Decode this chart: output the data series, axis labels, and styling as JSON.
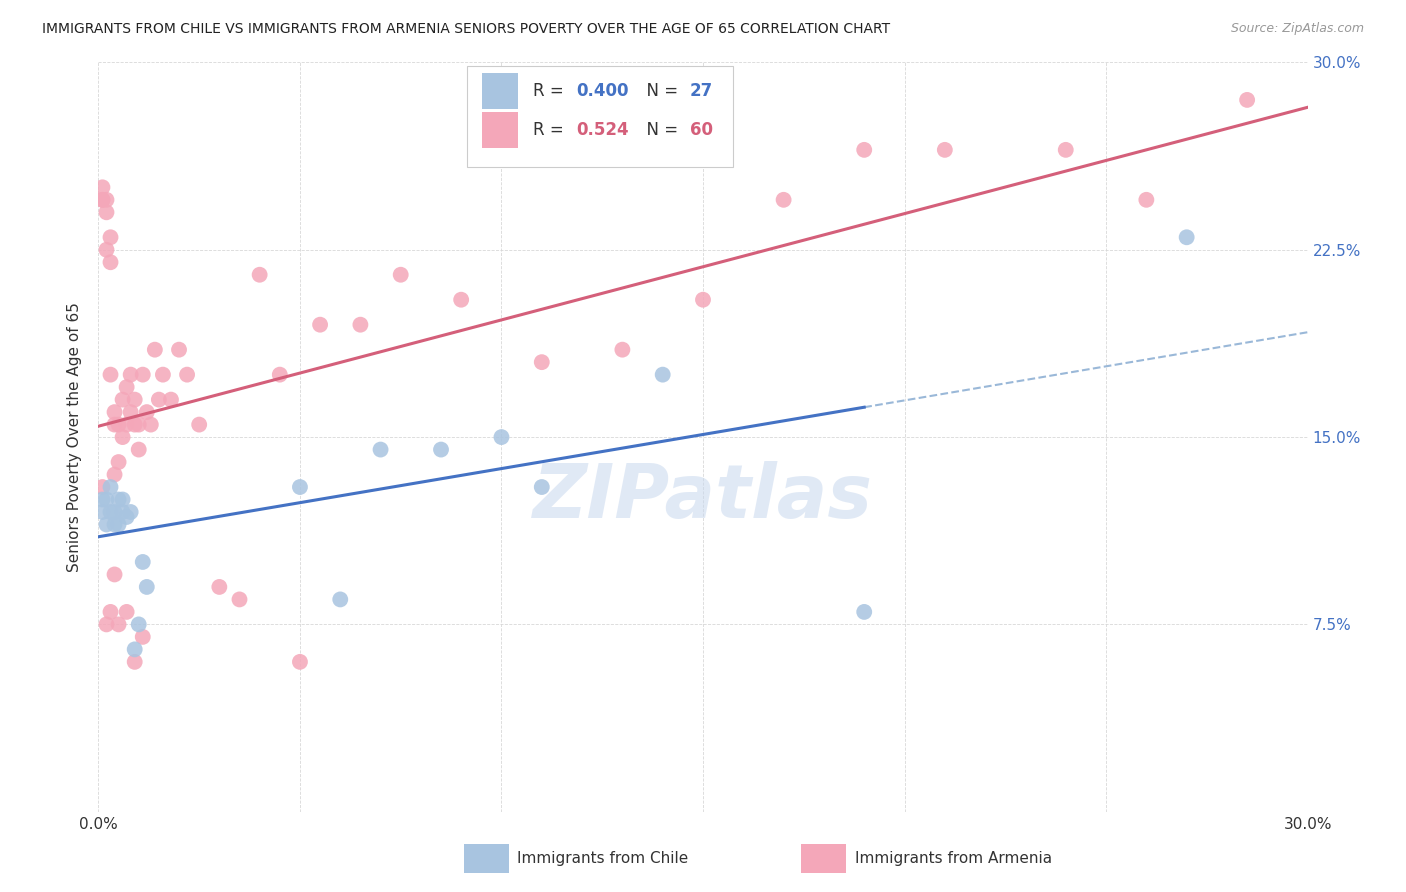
{
  "title": "IMMIGRANTS FROM CHILE VS IMMIGRANTS FROM ARMENIA SENIORS POVERTY OVER THE AGE OF 65 CORRELATION CHART",
  "source": "Source: ZipAtlas.com",
  "ylabel": "Seniors Poverty Over the Age of 65",
  "xlim": [
    0.0,
    0.3
  ],
  "ylim": [
    0.0,
    0.3
  ],
  "x_ticks": [
    0.0,
    0.05,
    0.1,
    0.15,
    0.2,
    0.25,
    0.3
  ],
  "y_ticks": [
    0.0,
    0.075,
    0.15,
    0.225,
    0.3
  ],
  "chile_color": "#a8c4e0",
  "armenia_color": "#f4a7b9",
  "chile_line_color": "#4472c4",
  "armenia_line_color": "#d45f7a",
  "chile_dashed_color": "#9ab8d8",
  "R_chile": 0.4,
  "N_chile": 27,
  "R_armenia": 0.524,
  "N_armenia": 60,
  "chile_x": [
    0.001,
    0.001,
    0.002,
    0.002,
    0.003,
    0.003,
    0.004,
    0.004,
    0.005,
    0.005,
    0.006,
    0.006,
    0.007,
    0.008,
    0.009,
    0.01,
    0.011,
    0.012,
    0.05,
    0.06,
    0.07,
    0.085,
    0.1,
    0.11,
    0.14,
    0.19,
    0.27
  ],
  "chile_y": [
    0.12,
    0.125,
    0.115,
    0.125,
    0.12,
    0.13,
    0.115,
    0.12,
    0.115,
    0.125,
    0.12,
    0.125,
    0.118,
    0.12,
    0.065,
    0.075,
    0.1,
    0.09,
    0.13,
    0.085,
    0.145,
    0.145,
    0.15,
    0.13,
    0.175,
    0.08,
    0.23
  ],
  "armenia_x": [
    0.001,
    0.001,
    0.001,
    0.002,
    0.002,
    0.002,
    0.003,
    0.003,
    0.003,
    0.004,
    0.004,
    0.004,
    0.005,
    0.005,
    0.006,
    0.006,
    0.007,
    0.007,
    0.008,
    0.008,
    0.009,
    0.009,
    0.01,
    0.01,
    0.011,
    0.012,
    0.013,
    0.014,
    0.015,
    0.016,
    0.018,
    0.02,
    0.022,
    0.025,
    0.03,
    0.035,
    0.04,
    0.045,
    0.05,
    0.055,
    0.065,
    0.075,
    0.09,
    0.11,
    0.13,
    0.15,
    0.17,
    0.19,
    0.21,
    0.24,
    0.26,
    0.285,
    0.001,
    0.002,
    0.003,
    0.004,
    0.005,
    0.007,
    0.009,
    0.011
  ],
  "armenia_y": [
    0.245,
    0.245,
    0.25,
    0.24,
    0.245,
    0.225,
    0.22,
    0.23,
    0.175,
    0.135,
    0.155,
    0.16,
    0.14,
    0.155,
    0.15,
    0.165,
    0.155,
    0.17,
    0.16,
    0.175,
    0.165,
    0.155,
    0.155,
    0.145,
    0.175,
    0.16,
    0.155,
    0.185,
    0.165,
    0.175,
    0.165,
    0.185,
    0.175,
    0.155,
    0.09,
    0.085,
    0.215,
    0.175,
    0.06,
    0.195,
    0.195,
    0.215,
    0.205,
    0.18,
    0.185,
    0.205,
    0.245,
    0.265,
    0.265,
    0.265,
    0.245,
    0.285,
    0.13,
    0.075,
    0.08,
    0.095,
    0.075,
    0.08,
    0.06,
    0.07
  ],
  "watermark_text": "ZIPatlas",
  "watermark_color": "#c8d8ee",
  "background_color": "#ffffff",
  "grid_color": "#d8d8d8"
}
